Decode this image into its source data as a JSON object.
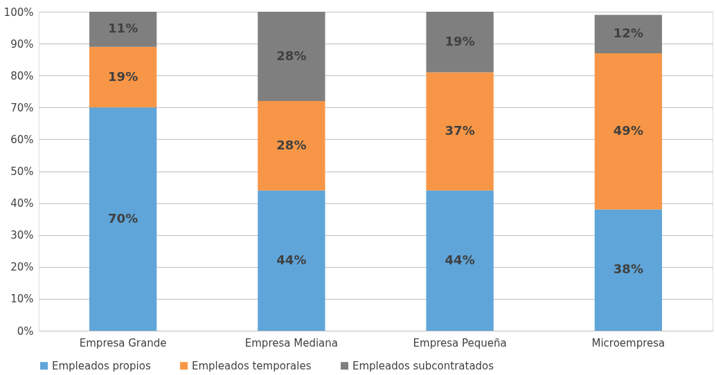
{
  "chart_data": {
    "type": "bar",
    "stacked": true,
    "categories": [
      "Empresa Grande",
      "Empresa Mediana",
      "Empresa Pequeña",
      "Microempresa"
    ],
    "series": [
      {
        "name": "Empleados propios",
        "color": "#5fa5d9",
        "values": [
          70,
          44,
          44,
          38
        ],
        "value_labels": [
          "70%",
          "44%",
          "44%",
          "38%"
        ]
      },
      {
        "name": "Empleados temporales",
        "color": "#f79646",
        "values": [
          19,
          28,
          37,
          49
        ],
        "value_labels": [
          "19%",
          "28%",
          "37%",
          "49%"
        ]
      },
      {
        "name": "Empleados subcontratados",
        "color": "#7f7f7f",
        "values": [
          11,
          28,
          19,
          12
        ],
        "value_labels": [
          "11%",
          "28%",
          "19%",
          "12%"
        ]
      }
    ],
    "ylim": [
      0,
      100
    ],
    "yticks": [
      {
        "value": 0,
        "label": "0%"
      },
      {
        "value": 10,
        "label": "10%"
      },
      {
        "value": 20,
        "label": "20%"
      },
      {
        "value": 30,
        "label": "30%"
      },
      {
        "value": 40,
        "label": "40%"
      },
      {
        "value": 50,
        "label": "50%"
      },
      {
        "value": 60,
        "label": "60%"
      },
      {
        "value": 70,
        "label": "70%"
      },
      {
        "value": 80,
        "label": "80%"
      },
      {
        "value": 90,
        "label": "90%"
      },
      {
        "value": 100,
        "label": "100%"
      }
    ],
    "grid": "y",
    "legend": "bottom"
  }
}
